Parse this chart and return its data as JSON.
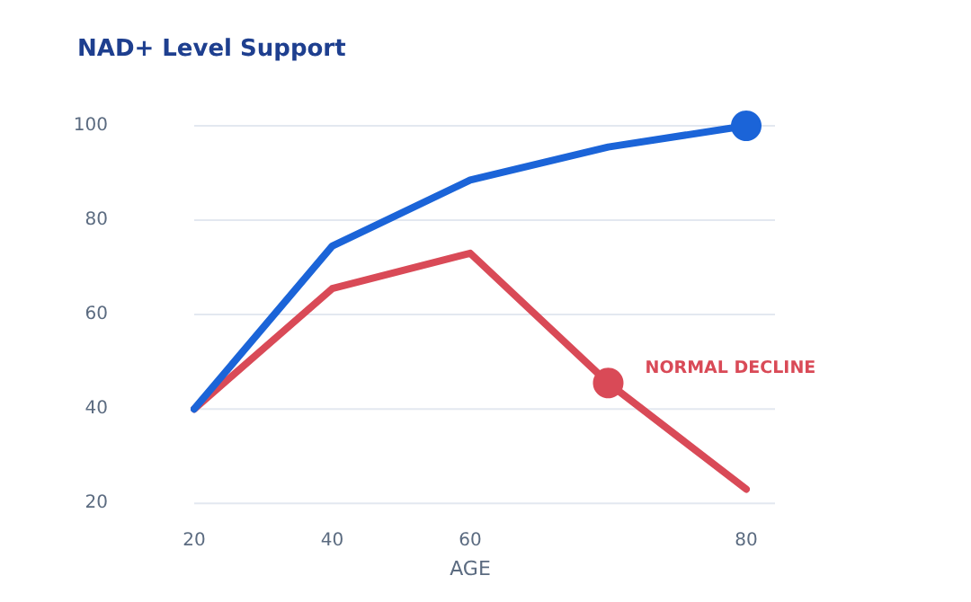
{
  "chart_data": {
    "type": "line",
    "title": "NAD+ Level Support",
    "xlabel": "AGE",
    "categories": [
      "20",
      "40",
      "60",
      null,
      "80"
    ],
    "series": [
      {
        "color": "#1b64d8",
        "values": [
          40,
          74.5,
          88.5,
          95.5,
          100
        ]
      },
      {
        "name": "NORMAL DECLINE",
        "color": "#d94a57",
        "values": [
          40,
          65.5,
          73,
          45.5,
          23
        ]
      }
    ],
    "ylim": [
      20,
      100
    ],
    "yticks": [
      20,
      40,
      60,
      80,
      100
    ],
    "grid": "y",
    "legend": false,
    "marker": "none",
    "line_style": "solid"
  }
}
